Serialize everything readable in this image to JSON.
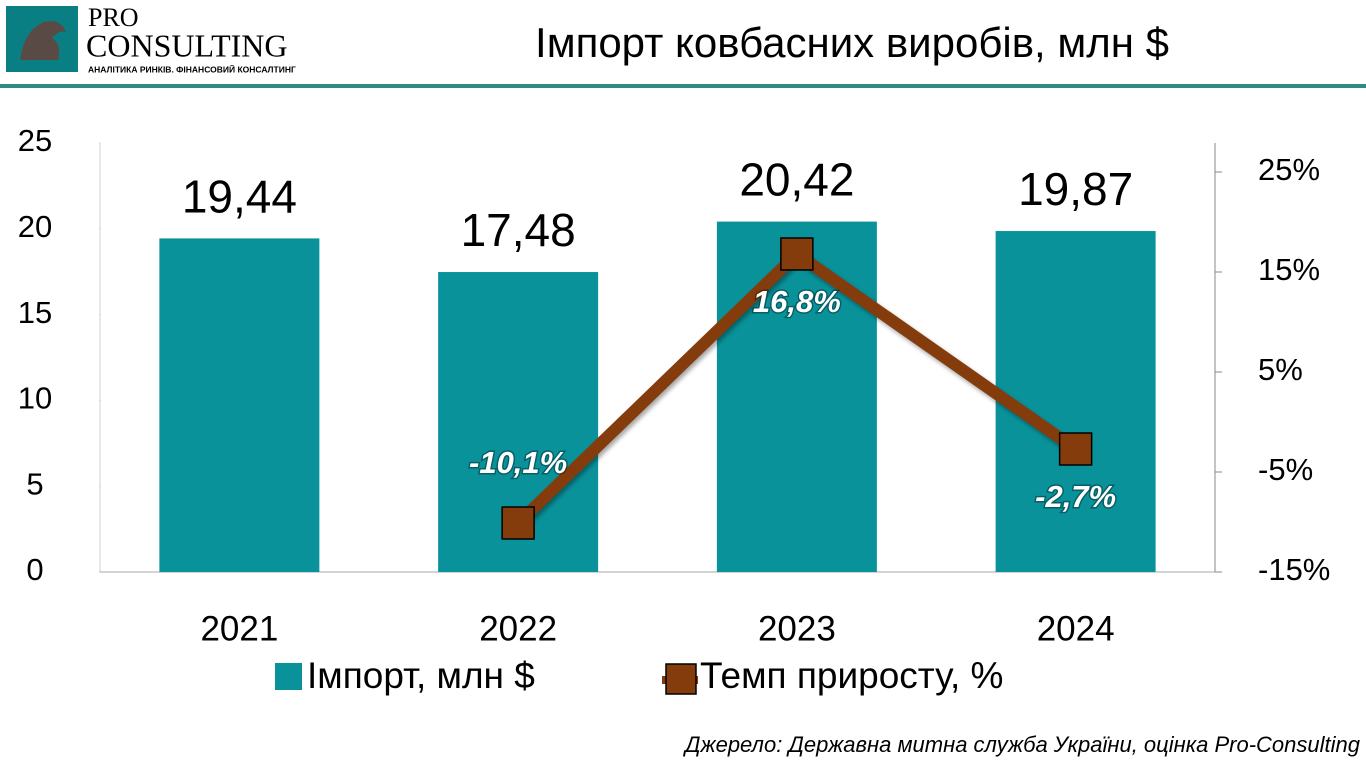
{
  "logo": {
    "top": "PRO",
    "name": "CONSULTING",
    "tagline": "АНАЛІТИКА РИНКІВ. ФІНАНСОВИЙ КОНСАЛТИНГ"
  },
  "chart_data": {
    "type": "bar",
    "title": "Імпорт ковбасних виробів, млн $",
    "categories": [
      "2021",
      "2022",
      "2023",
      "2024"
    ],
    "series": [
      {
        "name": "Імпорт, млн $",
        "type": "bar",
        "color": "#0a929b",
        "values": [
          19.44,
          17.48,
          20.42,
          19.87
        ],
        "value_labels": [
          "19,44",
          "17,48",
          "20,42",
          "19,87"
        ]
      },
      {
        "name": "Темп приросту, %",
        "type": "line",
        "axis": "y2",
        "color": "#843c0c",
        "values": [
          null,
          -10.1,
          16.8,
          -2.7
        ],
        "value_labels": [
          null,
          "-10,1%",
          "16,8%",
          "-2,7%"
        ]
      }
    ],
    "ylim": [
      0,
      25
    ],
    "yticks": [
      0,
      5,
      10,
      15,
      20,
      25
    ],
    "y2lim": [
      -15,
      27.9
    ],
    "y2ticks": [
      {
        "value": -15,
        "label": "-15%"
      },
      {
        "value": -5,
        "label": "-5%"
      },
      {
        "value": 5,
        "label": "5%"
      },
      {
        "value": 15,
        "label": "15%"
      },
      {
        "value": 25,
        "label": "25%"
      }
    ],
    "legend": "bottom",
    "source": "Джерело:  Державна митна служба України, оцінка Pro-Consulting"
  }
}
